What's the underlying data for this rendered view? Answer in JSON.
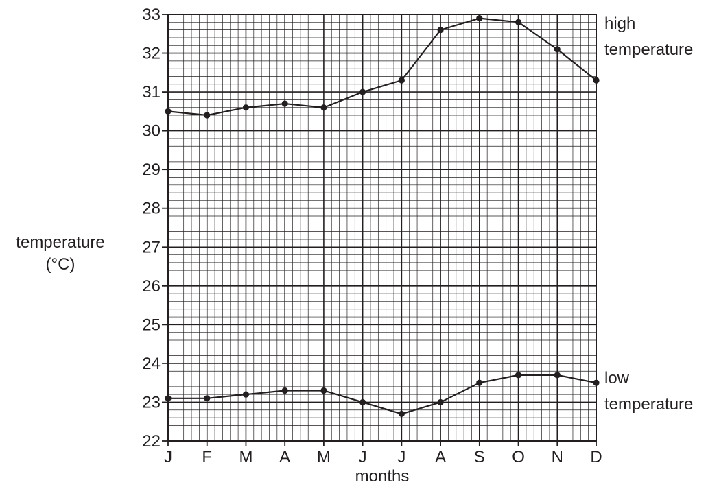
{
  "chart_data": {
    "type": "line",
    "title": "",
    "xlabel": "months",
    "ylabel": [
      "temperature",
      "(°C)"
    ],
    "categories": [
      "J",
      "F",
      "M",
      "A",
      "M",
      "J",
      "J",
      "A",
      "S",
      "O",
      "N",
      "D"
    ],
    "yticks": [
      "22",
      "23",
      "24",
      "25",
      "26",
      "27",
      "28",
      "29",
      "30",
      "31",
      "32",
      "33"
    ],
    "ylim": [
      22,
      33
    ],
    "minor_step": 0.2,
    "x_minor_per_category": 5,
    "grid": true,
    "legend": "none",
    "series": [
      {
        "name": "high temperature",
        "label_lines": [
          "high",
          "temperature"
        ],
        "color": "#231f20",
        "values": [
          30.5,
          30.4,
          30.6,
          30.7,
          30.6,
          31.0,
          31.3,
          32.6,
          32.9,
          32.8,
          32.1,
          31.3
        ]
      },
      {
        "name": "low temperature",
        "label_lines": [
          "low",
          "temperature"
        ],
        "color": "#231f20",
        "values": [
          23.1,
          23.1,
          23.2,
          23.3,
          23.3,
          23.0,
          22.7,
          23.0,
          23.5,
          23.7,
          23.7,
          23.5
        ]
      }
    ]
  },
  "colors": {
    "ink": "#231f20",
    "background": "#ffffff"
  }
}
